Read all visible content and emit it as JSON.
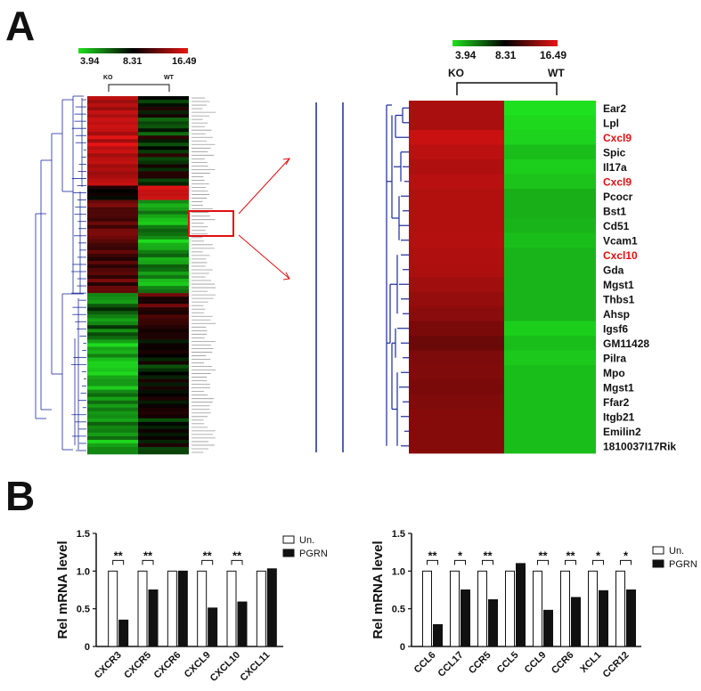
{
  "panel_a_label": "A",
  "panel_b_label": "B",
  "colors": {
    "low": "#1fe01f",
    "mid": "#000000",
    "high": "#e81414",
    "highlight": "#e01010",
    "tree": "#1a2a9c",
    "gene_text": "#111111",
    "gene_red": "#e01010"
  },
  "chart_data": [
    {
      "type": "heatmap",
      "panel": "A-left",
      "scale_min": "3.94",
      "scale_mid": "8.31",
      "scale_max": "16.49",
      "columns": [
        "KO",
        "WT"
      ]
    },
    {
      "type": "heatmap",
      "panel": "A-right",
      "scale_min": "3.94",
      "scale_mid": "8.31",
      "scale_max": "16.49",
      "columns": [
        "KO",
        "WT"
      ],
      "rows": [
        {
          "gene": "Ear2",
          "ko": 14.3,
          "wt": 3.94,
          "red": false
        },
        {
          "gene": "Lpl",
          "ko": 14.3,
          "wt": 4.1,
          "red": false
        },
        {
          "gene": "Cxcl9",
          "ko": 15.4,
          "wt": 4.2,
          "red": true
        },
        {
          "gene": "Spic",
          "ko": 14.9,
          "wt": 4.6,
          "red": false
        },
        {
          "gene": "Il17a",
          "ko": 14.5,
          "wt": 4.3,
          "red": false
        },
        {
          "gene": "Cxcl9",
          "ko": 14.8,
          "wt": 4.5,
          "red": true
        },
        {
          "gene": "Pcocr",
          "ko": 14.6,
          "wt": 4.9,
          "red": false
        },
        {
          "gene": "Bst1",
          "ko": 14.6,
          "wt": 4.9,
          "red": false
        },
        {
          "gene": "Cd51",
          "ko": 14.6,
          "wt": 4.8,
          "red": false
        },
        {
          "gene": "Vcam1",
          "ko": 14.7,
          "wt": 4.6,
          "red": false
        },
        {
          "gene": "Cxcl10",
          "ko": 14.5,
          "wt": 4.8,
          "red": true
        },
        {
          "gene": "Gda",
          "ko": 14.4,
          "wt": 4.8,
          "red": false
        },
        {
          "gene": "Mgst1",
          "ko": 14.0,
          "wt": 4.8,
          "red": false
        },
        {
          "gene": "Thbs1",
          "ko": 13.6,
          "wt": 4.8,
          "red": false
        },
        {
          "gene": "Ahsp",
          "ko": 13.2,
          "wt": 4.8,
          "red": false
        },
        {
          "gene": "Igsf6",
          "ko": 12.6,
          "wt": 4.3,
          "red": false
        },
        {
          "gene": "GM11428",
          "ko": 12.1,
          "wt": 4.6,
          "red": false
        },
        {
          "gene": "Pilra",
          "ko": 12.7,
          "wt": 4.4,
          "red": false
        },
        {
          "gene": "Mpo",
          "ko": 12.8,
          "wt": 4.6,
          "red": false
        },
        {
          "gene": "Mgst1",
          "ko": 12.6,
          "wt": 4.6,
          "red": false
        },
        {
          "gene": "Ffar2",
          "ko": 12.8,
          "wt": 4.6,
          "red": false
        },
        {
          "gene": "Itgb21",
          "ko": 13.0,
          "wt": 4.6,
          "red": false
        },
        {
          "gene": "Emilin2",
          "ko": 13.0,
          "wt": 4.6,
          "red": false
        },
        {
          "gene": "1810037I17Rik",
          "ko": 13.0,
          "wt": 4.6,
          "red": false
        }
      ]
    },
    {
      "type": "bar",
      "panel": "B-left",
      "ylabel": "Rel mRNA level",
      "ylim": [
        0,
        1.5
      ],
      "yticks": [
        "0",
        "0.5",
        "1.0",
        "1.5"
      ],
      "categories": [
        "CXCR3",
        "CXCR5",
        "CXCR6",
        "CXCL9",
        "CXCL10",
        "CXCL11"
      ],
      "series": [
        {
          "name": "Un.",
          "values": [
            1.0,
            1.0,
            1.0,
            1.0,
            1.0,
            1.0
          ]
        },
        {
          "name": "PGRN",
          "values": [
            0.35,
            0.75,
            1.0,
            0.51,
            0.59,
            1.03
          ]
        }
      ],
      "significance": [
        "**",
        "**",
        "",
        "**",
        "**",
        ""
      ],
      "legend": "top-right"
    },
    {
      "type": "bar",
      "panel": "B-right",
      "ylabel": "Rel mRNA level",
      "ylim": [
        0,
        1.5
      ],
      "yticks": [
        "0",
        "0.5",
        "1.0",
        "1.5"
      ],
      "categories": [
        "CCL6",
        "CCL17",
        "CCR5",
        "CCL5",
        "CCL9",
        "CCR6",
        "XCL1",
        "CCR12"
      ],
      "series": [
        {
          "name": "Un.",
          "values": [
            1.0,
            1.0,
            1.0,
            1.0,
            1.0,
            1.0,
            1.0,
            1.0
          ]
        },
        {
          "name": "PGRN",
          "values": [
            0.29,
            0.75,
            0.62,
            1.1,
            0.48,
            0.65,
            0.74,
            0.75
          ]
        }
      ],
      "significance": [
        "**",
        "*",
        "**",
        "",
        "**",
        "**",
        "*",
        "*"
      ],
      "legend": "top-right"
    }
  ]
}
